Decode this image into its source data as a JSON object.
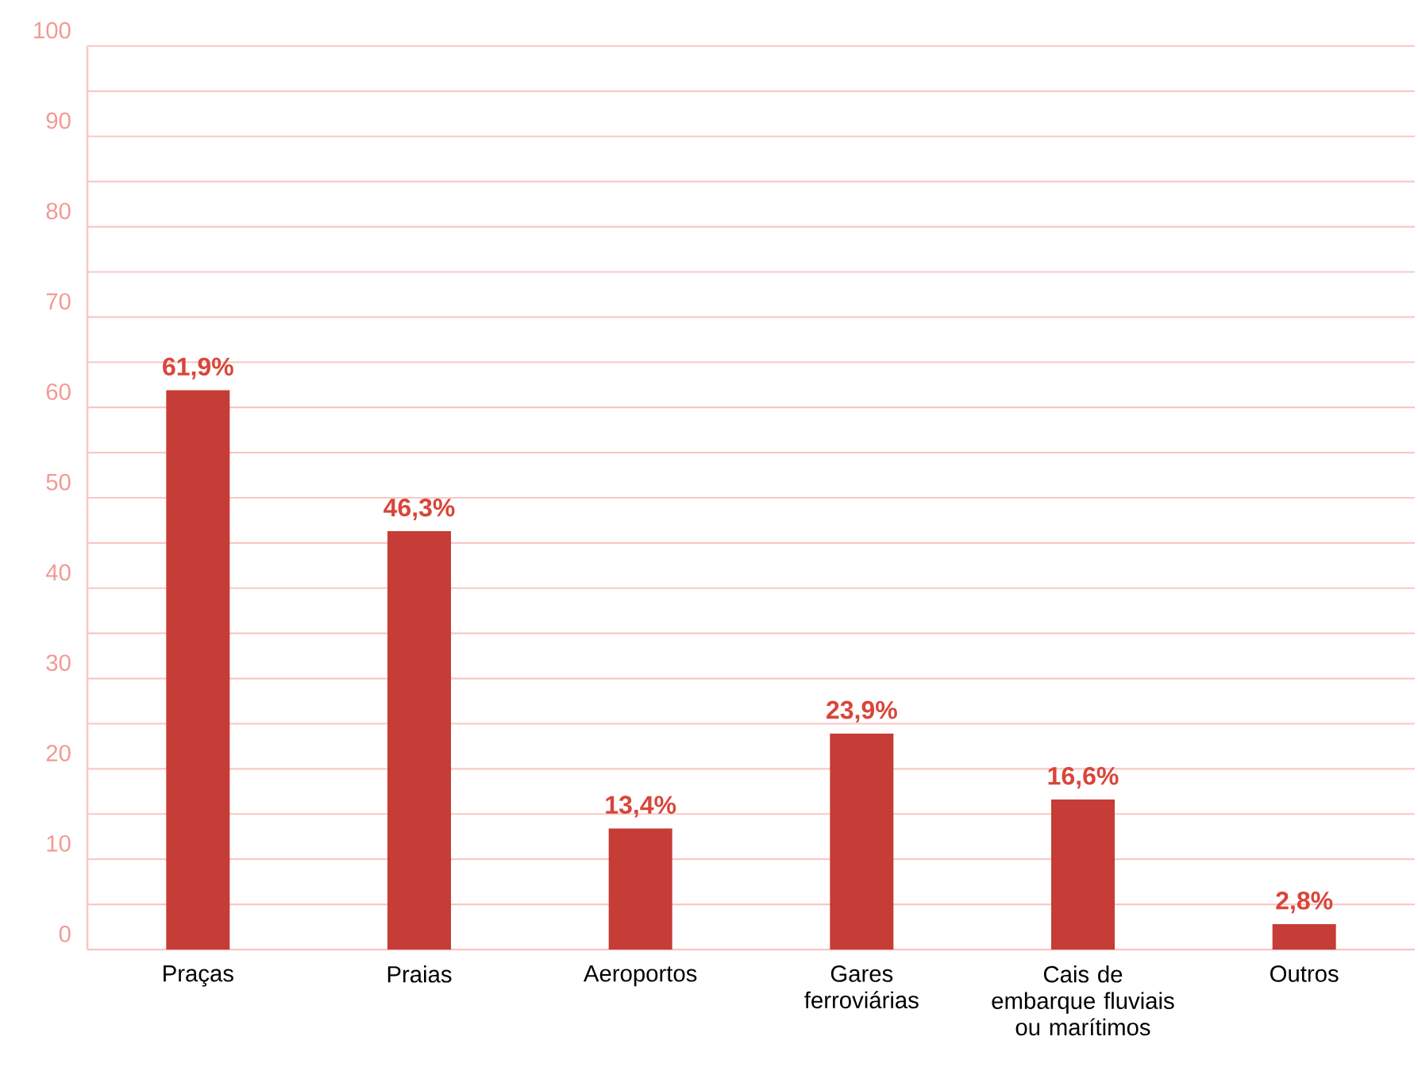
{
  "chart_data": {
    "type": "bar",
    "categories": [
      "Praças",
      "Praias",
      "Aeroportos",
      "Gares ferroviárias",
      "Cais de embarque fluviais ou marítimos",
      "Outros"
    ],
    "values": [
      61.9,
      46.3,
      13.4,
      23.9,
      16.6,
      2.8
    ],
    "value_labels": [
      "61,9%",
      "46,3%",
      "13,4%",
      "23,9%",
      "16,6%",
      "2,8%"
    ],
    "color": "#c63c36",
    "ylim": [
      0,
      100
    ],
    "yticks": [
      0,
      {
        "value": 5,
        "label": null
      },
      10,
      {
        "value": 15,
        "label": null
      },
      20,
      {
        "value": 25,
        "label": null
      },
      30,
      {
        "value": 35,
        "label": null
      },
      40,
      {
        "value": 45,
        "label": null
      },
      50,
      {
        "value": 55,
        "label": null
      },
      60,
      {
        "value": 65,
        "label": null
      },
      70,
      {
        "value": 75,
        "label": null
      },
      80,
      {
        "value": 85,
        "label": null
      },
      90,
      {
        "value": 95,
        "label": null
      },
      100
    ],
    "grid": "y"
  }
}
